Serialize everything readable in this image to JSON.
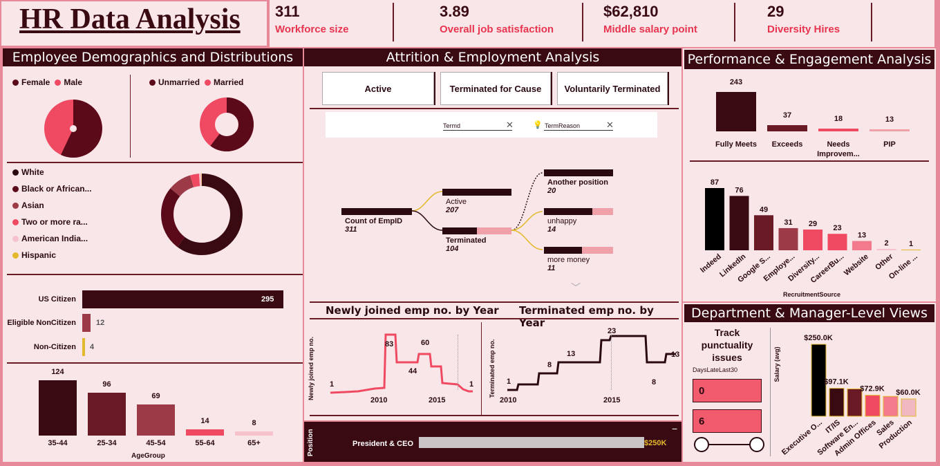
{
  "title": "HR Data Analysis",
  "kpis": [
    {
      "value": "311",
      "label": "Workforce size"
    },
    {
      "value": "3.89",
      "label": "Overall job satisfaction"
    },
    {
      "value": "$62,810",
      "label": "Middle salary point"
    },
    {
      "value": "29",
      "label": "Diversity Hires"
    }
  ],
  "sections": {
    "demographics": "Employee Demographics and Distributions",
    "attrition": "Attrition & Employment Analysis",
    "performance": "Performance & Engagement Analysis",
    "department": "Department & Manager-Level Views"
  },
  "gender": {
    "legend": [
      "Female",
      "Male"
    ],
    "values": [
      {
        "label": "Female",
        "value": 176
      },
      {
        "label": "Male",
        "value": 135
      }
    ]
  },
  "marital": {
    "legend": [
      "Unmarried",
      "Married"
    ],
    "values": [
      {
        "label": "Unmarried",
        "value": 188
      },
      {
        "label": "Married",
        "value": 123
      }
    ]
  },
  "race": {
    "legend": [
      "White",
      "Black or African...",
      "Asian",
      "Two or more ra...",
      "American India...",
      "Hispanic"
    ],
    "values": [
      187,
      80,
      29,
      11,
      3,
      1
    ]
  },
  "citizenship": [
    {
      "label": "US Citizen",
      "value": 295
    },
    {
      "label": "Eligible NonCitizen",
      "value": 12
    },
    {
      "label": "Non-Citizen",
      "value": 4
    }
  ],
  "age": {
    "axis": "AgeGroup",
    "groups": [
      {
        "label": "35-44",
        "value": 124
      },
      {
        "label": "25-34",
        "value": 96
      },
      {
        "label": "45-54",
        "value": 69
      },
      {
        "label": "55-64",
        "value": 14
      },
      {
        "label": "65+",
        "value": 8
      }
    ]
  },
  "status_buttons": [
    "Active",
    "Terminated for Cause",
    "Voluntarily Terminated"
  ],
  "filters": {
    "termd": "Termd",
    "reason": "TermReason"
  },
  "tree": {
    "root": {
      "label": "Count of EmpID",
      "value": "311"
    },
    "active": {
      "label": "Active",
      "value": "207"
    },
    "terminated": {
      "label": "Terminated",
      "value": "104"
    },
    "reasons": [
      {
        "label": "Another position",
        "value": "20"
      },
      {
        "label": "unhappy",
        "value": "14"
      },
      {
        "label": "more money",
        "value": "11"
      }
    ]
  },
  "newly_joined": {
    "title": "Newly joined emp no. by Year",
    "ylabel": "Newly joined emp no.",
    "ticks": [
      "2010",
      "2015"
    ],
    "labels": [
      "1",
      "83",
      "60",
      "44",
      "1"
    ]
  },
  "terminated_year": {
    "title": "Terminated emp no. by Year",
    "ylabel": "Terminated emp no.",
    "ticks": [
      "2010",
      "2015"
    ],
    "labels": [
      "1",
      "8",
      "13",
      "23",
      "8",
      "13"
    ]
  },
  "position": {
    "axis": "Position",
    "label": "President & CEO",
    "value": "$250K"
  },
  "performance": [
    {
      "label": "Fully Meets",
      "value": 243
    },
    {
      "label": "Exceeds",
      "value": 37
    },
    {
      "label": "Needs Improvem...",
      "value": 18
    },
    {
      "label": "PIP",
      "value": 13
    }
  ],
  "recruitment": {
    "axis": "RecruitmentSource",
    "items": [
      {
        "label": "Indeed",
        "value": 87
      },
      {
        "label": "LinkedIn",
        "value": 76
      },
      {
        "label": "Google S...",
        "value": 49
      },
      {
        "label": "Employe...",
        "value": 31
      },
      {
        "label": "Diversity...",
        "value": 29
      },
      {
        "label": "CareerBu...",
        "value": 23
      },
      {
        "label": "Website",
        "value": 13
      },
      {
        "label": "Other",
        "value": 2
      },
      {
        "label": "On-line ...",
        "value": 1
      }
    ]
  },
  "punctuality": {
    "title": "Track punctuality issues",
    "field": "DaysLateLast30",
    "min": "0",
    "max": "6"
  },
  "salary": {
    "ylabel": "Salary (avg)",
    "items": [
      {
        "label": "Executive O...",
        "value": "$250.0K",
        "v": 250
      },
      {
        "label": "IT/IS",
        "value": "$97.1K",
        "v": 97.1
      },
      {
        "label": "Software En...",
        "value": "",
        "v": 95
      },
      {
        "label": "Admin Offices",
        "value": "$72.9K",
        "v": 72.9
      },
      {
        "label": "Sales",
        "value": "",
        "v": 69
      },
      {
        "label": "Production",
        "value": "$60.0K",
        "v": 60
      }
    ]
  },
  "colors": {
    "dark": "#3a0a12",
    "primary": "#e8354f",
    "accent": "#e3b92b"
  }
}
